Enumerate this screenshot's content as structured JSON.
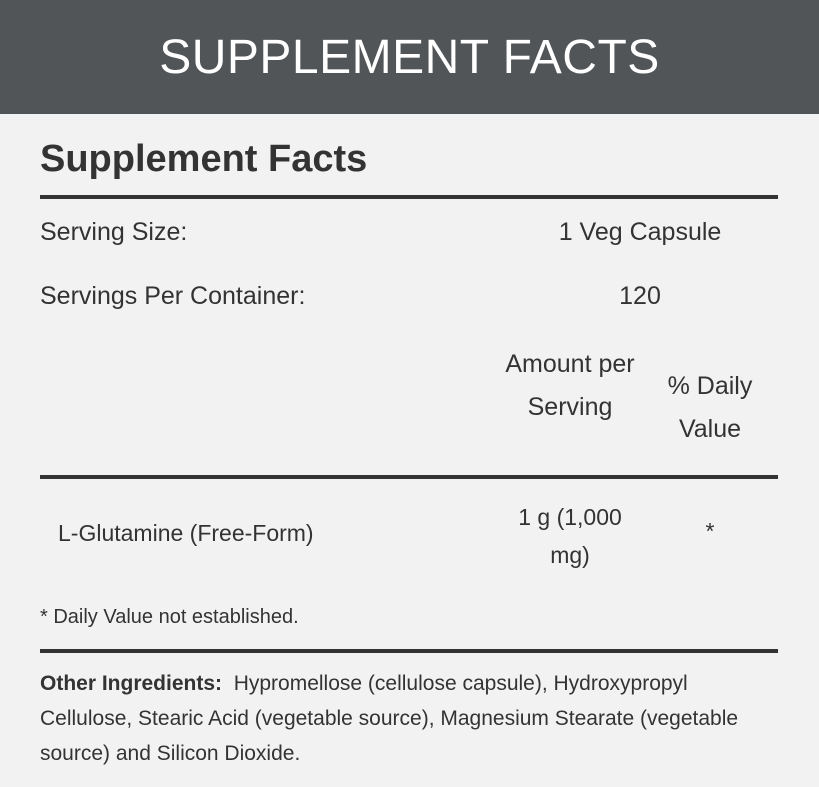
{
  "banner": "SUPPLEMENT FACTS",
  "title": "Supplement Facts",
  "serving_size_label": "Serving Size:",
  "serving_size_value": "1 Veg Capsule",
  "servings_label": "Servings Per Container:",
  "servings_value": "120",
  "col_amount": "Amount per Serving",
  "col_dv": "% Daily Value",
  "rows": [
    {
      "name": "L-Glutamine (Free-Form)",
      "amount": "1 g (1,000 mg)",
      "dv": "*"
    }
  ],
  "footnote": "* Daily Value not established.",
  "other_label": "Other Ingredients:",
  "other_text": "Hypromellose (cellulose capsule), Hydroxypropyl Cellulose, Stearic Acid (vegetable source), Magnesium Stearate (vegetable source) and Silicon Dioxide."
}
